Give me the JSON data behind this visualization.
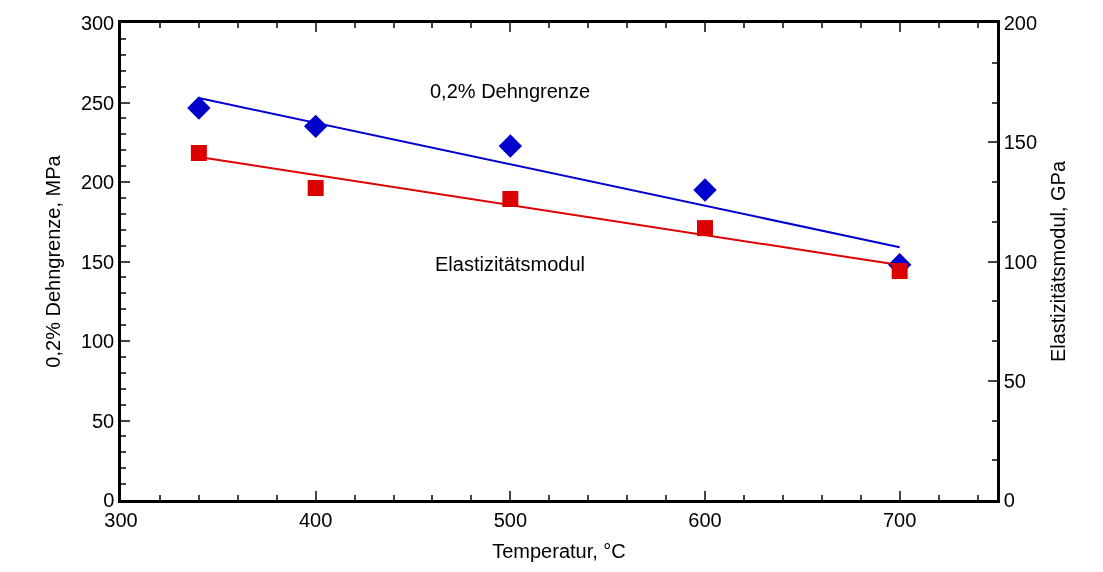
{
  "chart_data": {
    "type": "scatter",
    "xlabel": "Temperatur, °C",
    "ylabel": "0,2% Dehngrenze, MPa",
    "y2label": "Elastizitätsmodul, GPa",
    "xlim": [
      300,
      750
    ],
    "xticks": [
      300,
      400,
      500,
      600,
      700
    ],
    "ylim": [
      0,
      300
    ],
    "yticks": [
      0,
      50,
      100,
      150,
      200,
      250,
      300
    ],
    "y2lim": [
      0,
      200
    ],
    "y2ticks": [
      0,
      50,
      100,
      150,
      200
    ],
    "legend": false,
    "series": [
      {
        "name": "0,2% Dehngrenze",
        "color": "#0000cc",
        "marker": "diamond",
        "x": [
          340,
          400,
          500,
          600,
          700
        ],
        "values": [
          246.5,
          235,
          222.6,
          195,
          148
        ]
      },
      {
        "name": "Elastizitätsmodul",
        "color": "#dd0000",
        "marker": "square",
        "axis": "y2",
        "x": [
          340,
          400,
          500,
          600,
          700
        ],
        "values": [
          145.5,
          130.8,
          126.2,
          114,
          96
        ]
      },
      {
        "type": "line",
        "color": "#0000cc",
        "marker": "none",
        "x": [
          340,
          700
        ],
        "values": [
          252.8,
          159
        ]
      },
      {
        "type": "line",
        "color": "#dd0000",
        "marker": "none",
        "axis": "y2",
        "x": [
          340,
          700
        ],
        "values": [
          143.8,
          98.5
        ]
      }
    ]
  }
}
